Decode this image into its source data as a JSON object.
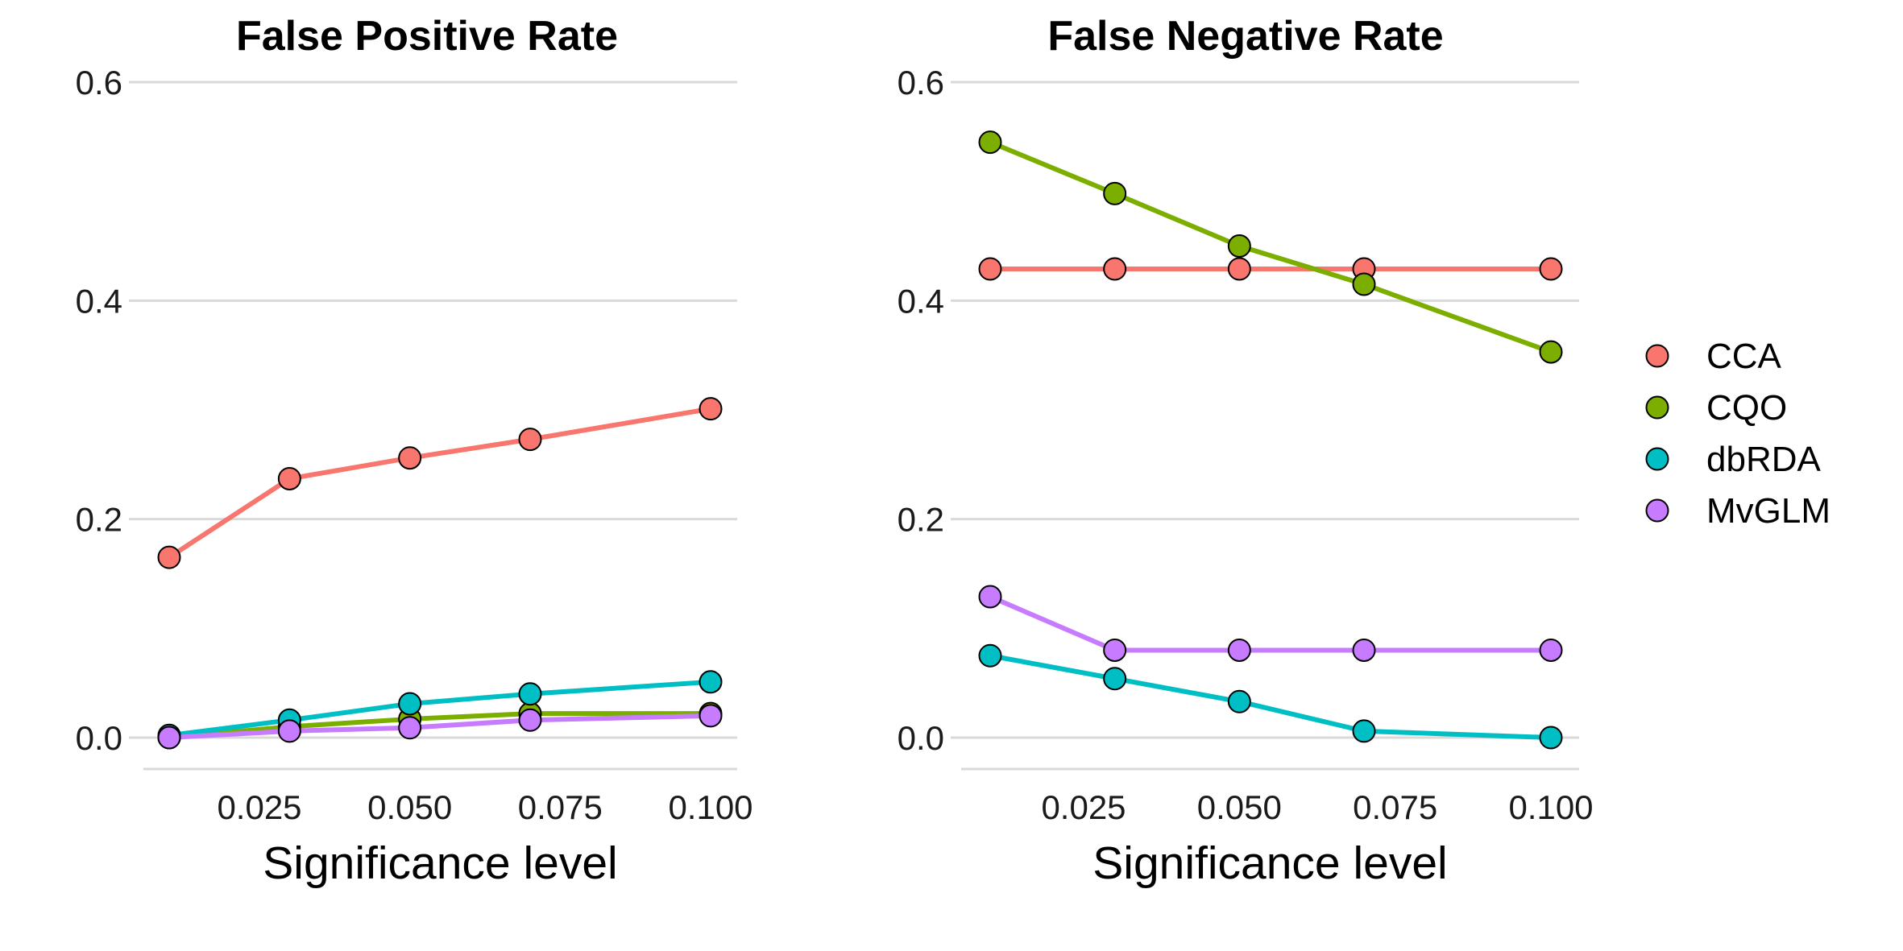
{
  "chart_data": [
    {
      "type": "line",
      "title": "False Positive Rate",
      "xlabel": "Significance level",
      "ylabel": "",
      "x": [
        0.01,
        0.03,
        0.05,
        0.07,
        0.1
      ],
      "xlim": [
        0.01,
        0.1
      ],
      "ylim": [
        0,
        0.6
      ],
      "xticks": [
        0.025,
        0.05,
        0.075,
        0.1
      ],
      "xtick_labels": [
        "0.025",
        "0.050",
        "0.075",
        "0.100"
      ],
      "yticks": [
        0,
        0.2,
        0.4,
        0.6
      ],
      "ytick_labels": [
        "0.0",
        "0.2",
        "0.4",
        "0.6"
      ],
      "grid": "horizontal major",
      "series": [
        {
          "name": "CCA",
          "color": "#F8766D",
          "values": [
            0.165,
            0.237,
            0.256,
            0.273,
            0.301
          ]
        },
        {
          "name": "CQO",
          "color": "#7CAE00",
          "values": [
            0.0,
            0.01,
            0.017,
            0.022,
            0.022
          ]
        },
        {
          "name": "dbRDA",
          "color": "#00BFC4",
          "values": [
            0.002,
            0.016,
            0.031,
            0.04,
            0.051
          ]
        },
        {
          "name": "MvGLM",
          "color": "#C77CFF",
          "values": [
            0.0,
            0.006,
            0.009,
            0.016,
            0.02
          ]
        }
      ]
    },
    {
      "type": "line",
      "title": "False Negative Rate",
      "xlabel": "Significance level",
      "ylabel": "",
      "x": [
        0.01,
        0.03,
        0.05,
        0.07,
        0.1
      ],
      "xlim": [
        0.01,
        0.1
      ],
      "ylim": [
        0,
        0.6
      ],
      "xticks": [
        0.025,
        0.05,
        0.075,
        0.1
      ],
      "xtick_labels": [
        "0.025",
        "0.050",
        "0.075",
        "0.100"
      ],
      "yticks": [
        0,
        0.2,
        0.4,
        0.6
      ],
      "ytick_labels": [
        "0.0",
        "0.2",
        "0.4",
        "0.6"
      ],
      "grid": "horizontal major",
      "series": [
        {
          "name": "CCA",
          "color": "#F8766D",
          "values": [
            0.429,
            0.429,
            0.429,
            0.429,
            0.429
          ]
        },
        {
          "name": "CQO",
          "color": "#7CAE00",
          "values": [
            0.545,
            0.498,
            0.45,
            0.415,
            0.353
          ]
        },
        {
          "name": "dbRDA",
          "color": "#00BFC4",
          "values": [
            0.075,
            0.054,
            0.033,
            0.006,
            0.0
          ]
        },
        {
          "name": "MvGLM",
          "color": "#C77CFF",
          "values": [
            0.129,
            0.08,
            0.08,
            0.08,
            0.08
          ]
        }
      ]
    }
  ],
  "legend": {
    "position": "right",
    "items": [
      {
        "label": "CCA",
        "color": "#F8766D"
      },
      {
        "label": "CQO",
        "color": "#7CAE00"
      },
      {
        "label": "dbRDA",
        "color": "#00BFC4"
      },
      {
        "label": "MvGLM",
        "color": "#C77CFF"
      }
    ]
  }
}
